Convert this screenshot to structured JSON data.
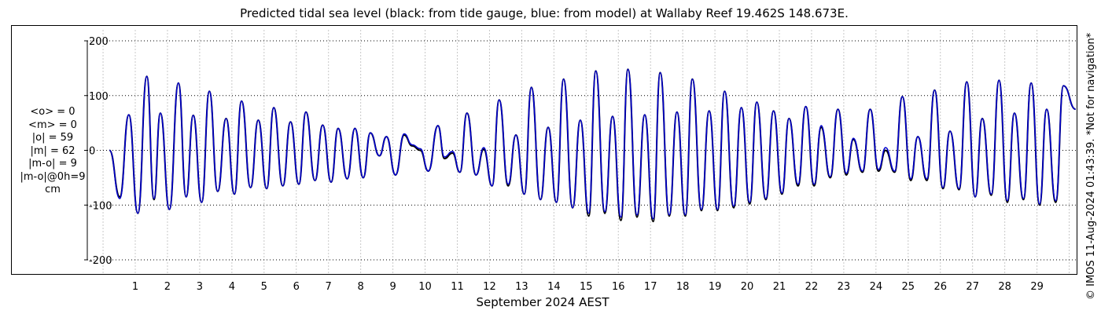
{
  "chart_data": {
    "type": "line",
    "title": "Predicted tidal sea level (black: from tide gauge, blue: from model) at Wallaby Reef 19.462S 148.673E.",
    "xlabel": "September 2024 AEST",
    "ylabel": "",
    "ylim": [
      -200,
      200
    ],
    "yticks": [
      200,
      100,
      0,
      -100,
      -200
    ],
    "yticklabels": [
      "200",
      "100",
      "0",
      "-100",
      "-200"
    ],
    "xlim": [
      0.2,
      30.2
    ],
    "xticks": [
      1,
      2,
      3,
      4,
      5,
      6,
      7,
      8,
      9,
      10,
      11,
      12,
      13,
      14,
      15,
      16,
      17,
      18,
      19,
      20,
      21,
      22,
      23,
      24,
      25,
      26,
      27,
      28,
      29
    ],
    "xticklabels": [
      "1",
      "2",
      "3",
      "4",
      "5",
      "6",
      "7",
      "8",
      "9",
      "10",
      "11",
      "12",
      "13",
      "14",
      "15",
      "16",
      "17",
      "18",
      "19",
      "20",
      "21",
      "22",
      "23",
      "24",
      "25",
      "26",
      "27",
      "28",
      "29"
    ],
    "grid": true,
    "series": [
      {
        "color": "#000000",
        "values": [
          [
            0.2,
            0
          ],
          [
            0.52,
            -85
          ],
          [
            0.8,
            65
          ],
          [
            1.08,
            -115
          ],
          [
            1.36,
            135
          ],
          [
            1.58,
            -90
          ],
          [
            1.78,
            68
          ],
          [
            2.06,
            -108
          ],
          [
            2.34,
            123
          ],
          [
            2.58,
            -85
          ],
          [
            2.8,
            64
          ],
          [
            3.06,
            -95
          ],
          [
            3.3,
            108
          ],
          [
            3.56,
            -75
          ],
          [
            3.82,
            58
          ],
          [
            4.08,
            -80
          ],
          [
            4.3,
            90
          ],
          [
            4.58,
            -68
          ],
          [
            4.82,
            55
          ],
          [
            5.08,
            -70
          ],
          [
            5.3,
            78
          ],
          [
            5.58,
            -65
          ],
          [
            5.82,
            52
          ],
          [
            6.08,
            -62
          ],
          [
            6.3,
            70
          ],
          [
            6.58,
            -55
          ],
          [
            6.82,
            46
          ],
          [
            7.08,
            -58
          ],
          [
            7.3,
            40
          ],
          [
            7.58,
            -52
          ],
          [
            7.82,
            40
          ],
          [
            8.08,
            -50
          ],
          [
            8.3,
            32
          ],
          [
            8.58,
            -10
          ],
          [
            8.8,
            25
          ],
          [
            9.08,
            -45
          ],
          [
            9.35,
            28
          ],
          [
            9.6,
            8
          ],
          [
            9.85,
            0
          ],
          [
            10.1,
            -38
          ],
          [
            10.4,
            45
          ],
          [
            10.6,
            -15
          ],
          [
            10.85,
            -5
          ],
          [
            11.08,
            -40
          ],
          [
            11.3,
            68
          ],
          [
            11.58,
            -45
          ],
          [
            11.82,
            2
          ],
          [
            12.08,
            -65
          ],
          [
            12.3,
            92
          ],
          [
            12.58,
            -65
          ],
          [
            12.82,
            28
          ],
          [
            13.08,
            -80
          ],
          [
            13.3,
            115
          ],
          [
            13.58,
            -90
          ],
          [
            13.82,
            42
          ],
          [
            14.08,
            -95
          ],
          [
            14.3,
            130
          ],
          [
            14.58,
            -105
          ],
          [
            14.82,
            55
          ],
          [
            15.08,
            -120
          ],
          [
            15.3,
            145
          ],
          [
            15.58,
            -115
          ],
          [
            15.82,
            62
          ],
          [
            16.08,
            -128
          ],
          [
            16.3,
            148
          ],
          [
            16.58,
            -122
          ],
          [
            16.82,
            65
          ],
          [
            17.08,
            -130
          ],
          [
            17.3,
            142
          ],
          [
            17.58,
            -120
          ],
          [
            17.82,
            70
          ],
          [
            18.08,
            -120
          ],
          [
            18.3,
            130
          ],
          [
            18.58,
            -110
          ],
          [
            18.82,
            72
          ],
          [
            19.08,
            -110
          ],
          [
            19.3,
            108
          ],
          [
            19.58,
            -105
          ],
          [
            19.82,
            78
          ],
          [
            20.08,
            -98
          ],
          [
            20.3,
            88
          ],
          [
            20.58,
            -90
          ],
          [
            20.82,
            72
          ],
          [
            21.08,
            -80
          ],
          [
            21.3,
            58
          ],
          [
            21.58,
            -65
          ],
          [
            21.82,
            80
          ],
          [
            22.08,
            -65
          ],
          [
            22.3,
            42
          ],
          [
            22.58,
            -50
          ],
          [
            22.82,
            75
          ],
          [
            23.08,
            -45
          ],
          [
            23.3,
            20
          ],
          [
            23.58,
            -40
          ],
          [
            23.82,
            75
          ],
          [
            24.08,
            -38
          ],
          [
            24.3,
            0
          ],
          [
            24.58,
            -40
          ],
          [
            24.82,
            98
          ],
          [
            25.08,
            -55
          ],
          [
            25.3,
            25
          ],
          [
            25.58,
            -55
          ],
          [
            25.82,
            110
          ],
          [
            26.08,
            -70
          ],
          [
            26.3,
            35
          ],
          [
            26.58,
            -72
          ],
          [
            26.82,
            125
          ],
          [
            27.08,
            -85
          ],
          [
            27.3,
            58
          ],
          [
            27.58,
            -82
          ],
          [
            27.82,
            128
          ],
          [
            28.08,
            -95
          ],
          [
            28.3,
            68
          ],
          [
            28.58,
            -90
          ],
          [
            28.82,
            123
          ],
          [
            29.08,
            -100
          ],
          [
            29.3,
            75
          ],
          [
            29.58,
            -95
          ],
          [
            29.82,
            118
          ],
          [
            30.2,
            75
          ]
        ]
      },
      {
        "color": "#0000cc",
        "values": [
          [
            0.2,
            0
          ],
          [
            0.52,
            -88
          ],
          [
            0.8,
            65
          ],
          [
            1.08,
            -115
          ],
          [
            1.36,
            135
          ],
          [
            1.58,
            -88
          ],
          [
            1.78,
            68
          ],
          [
            2.06,
            -108
          ],
          [
            2.34,
            123
          ],
          [
            2.58,
            -85
          ],
          [
            2.8,
            64
          ],
          [
            3.06,
            -95
          ],
          [
            3.3,
            108
          ],
          [
            3.56,
            -75
          ],
          [
            3.82,
            58
          ],
          [
            4.08,
            -80
          ],
          [
            4.3,
            90
          ],
          [
            4.58,
            -68
          ],
          [
            4.82,
            55
          ],
          [
            5.08,
            -70
          ],
          [
            5.3,
            78
          ],
          [
            5.58,
            -65
          ],
          [
            5.82,
            52
          ],
          [
            6.08,
            -62
          ],
          [
            6.3,
            70
          ],
          [
            6.58,
            -55
          ],
          [
            6.82,
            46
          ],
          [
            7.08,
            -58
          ],
          [
            7.3,
            40
          ],
          [
            7.58,
            -52
          ],
          [
            7.82,
            40
          ],
          [
            8.08,
            -50
          ],
          [
            8.3,
            32
          ],
          [
            8.58,
            -10
          ],
          [
            8.8,
            25
          ],
          [
            9.08,
            -45
          ],
          [
            9.35,
            30
          ],
          [
            9.6,
            10
          ],
          [
            9.85,
            3
          ],
          [
            10.1,
            -38
          ],
          [
            10.4,
            45
          ],
          [
            10.6,
            -12
          ],
          [
            10.85,
            -2
          ],
          [
            11.08,
            -40
          ],
          [
            11.3,
            68
          ],
          [
            11.58,
            -45
          ],
          [
            11.82,
            5
          ],
          [
            12.08,
            -65
          ],
          [
            12.3,
            92
          ],
          [
            12.58,
            -62
          ],
          [
            12.82,
            28
          ],
          [
            13.08,
            -80
          ],
          [
            13.3,
            115
          ],
          [
            13.58,
            -90
          ],
          [
            13.82,
            42
          ],
          [
            14.08,
            -95
          ],
          [
            14.3,
            130
          ],
          [
            14.58,
            -105
          ],
          [
            14.82,
            55
          ],
          [
            15.08,
            -115
          ],
          [
            15.3,
            145
          ],
          [
            15.58,
            -112
          ],
          [
            15.82,
            62
          ],
          [
            16.08,
            -122
          ],
          [
            16.3,
            148
          ],
          [
            16.58,
            -118
          ],
          [
            16.82,
            65
          ],
          [
            17.08,
            -125
          ],
          [
            17.3,
            142
          ],
          [
            17.58,
            -118
          ],
          [
            17.82,
            70
          ],
          [
            18.08,
            -118
          ],
          [
            18.3,
            130
          ],
          [
            18.58,
            -108
          ],
          [
            18.82,
            72
          ],
          [
            19.08,
            -108
          ],
          [
            19.3,
            108
          ],
          [
            19.58,
            -102
          ],
          [
            19.82,
            78
          ],
          [
            20.08,
            -95
          ],
          [
            20.3,
            88
          ],
          [
            20.58,
            -88
          ],
          [
            20.82,
            72
          ],
          [
            21.08,
            -78
          ],
          [
            21.3,
            58
          ],
          [
            21.58,
            -62
          ],
          [
            21.82,
            80
          ],
          [
            22.08,
            -62
          ],
          [
            22.3,
            45
          ],
          [
            22.58,
            -48
          ],
          [
            22.82,
            75
          ],
          [
            23.08,
            -42
          ],
          [
            23.3,
            22
          ],
          [
            23.58,
            -38
          ],
          [
            23.82,
            75
          ],
          [
            24.08,
            -35
          ],
          [
            24.3,
            5
          ],
          [
            24.58,
            -38
          ],
          [
            24.82,
            98
          ],
          [
            25.08,
            -52
          ],
          [
            25.3,
            25
          ],
          [
            25.58,
            -52
          ],
          [
            25.82,
            110
          ],
          [
            26.08,
            -68
          ],
          [
            26.3,
            35
          ],
          [
            26.58,
            -70
          ],
          [
            26.82,
            125
          ],
          [
            27.08,
            -85
          ],
          [
            27.3,
            58
          ],
          [
            27.58,
            -80
          ],
          [
            27.82,
            128
          ],
          [
            28.08,
            -92
          ],
          [
            28.3,
            68
          ],
          [
            28.58,
            -88
          ],
          [
            28.82,
            123
          ],
          [
            29.08,
            -98
          ],
          [
            29.3,
            75
          ],
          [
            29.58,
            -92
          ],
          [
            29.82,
            118
          ],
          [
            30.2,
            75
          ]
        ]
      }
    ],
    "stats": [
      "<o> = 0",
      "<m> = 0",
      "|o| = 59",
      "|m| = 62",
      "|m-o| = 9",
      "|m-o|@0h=9",
      "cm"
    ]
  },
  "copyright": "© IMOS 11-Aug-2024 01:43:39. *Not for navigation*"
}
